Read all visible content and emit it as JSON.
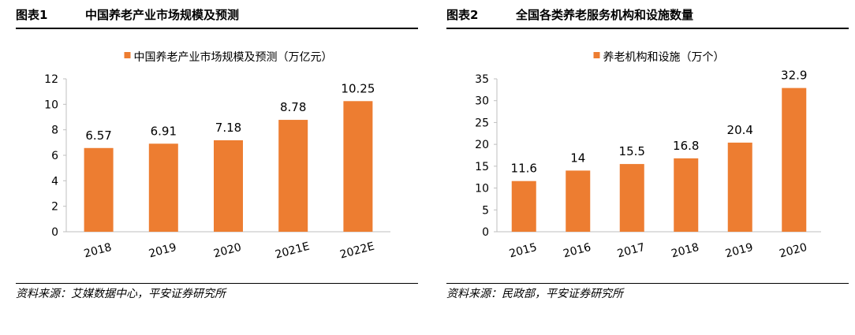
{
  "panels": [
    {
      "fig_no": "图表1",
      "fig_title": "中国养老产业市场规模及预测",
      "source": "资料来源：艾媒数据中心，平安证券研究所"
    },
    {
      "fig_no": "图表2",
      "fig_title": "全国各类养老服务机构和设施数量",
      "source": "资料来源：民政部，平安证券研究所"
    }
  ],
  "colors": {
    "bar": "#ED7D31",
    "axis": "#BFBFBF",
    "text": "#000000"
  },
  "chart_data": [
    {
      "type": "bar",
      "title": "",
      "legend": "中国养老产业市场规模及预测（万亿元）",
      "legend_position": "top-center",
      "categories": [
        "2018",
        "2019",
        "2020",
        "2021E",
        "2022E"
      ],
      "series": [
        {
          "name": "中国养老产业市场规模及预测（万亿元）",
          "values": [
            6.57,
            6.91,
            7.18,
            8.78,
            10.25
          ]
        }
      ],
      "data_labels": [
        "6.57",
        "6.91",
        "7.18",
        "8.78",
        "10.25"
      ],
      "y_ticks": [
        "0",
        "2",
        "4",
        "6",
        "8",
        "10",
        "12"
      ],
      "ylim": [
        0,
        12
      ],
      "grid": false
    },
    {
      "type": "bar",
      "title": "",
      "legend": "养老机构和设施（万个）",
      "legend_position": "top-center",
      "categories": [
        "2015",
        "2016",
        "2017",
        "2018",
        "2019",
        "2020"
      ],
      "series": [
        {
          "name": "养老机构和设施（万个）",
          "values": [
            11.6,
            14,
            15.5,
            16.8,
            20.4,
            32.9
          ]
        }
      ],
      "data_labels": [
        "11.6",
        "14",
        "15.5",
        "16.8",
        "20.4",
        "32.9"
      ],
      "y_ticks": [
        "0",
        "5",
        "10",
        "15",
        "20",
        "25",
        "30",
        "35"
      ],
      "ylim": [
        0,
        35
      ],
      "grid": false
    }
  ]
}
